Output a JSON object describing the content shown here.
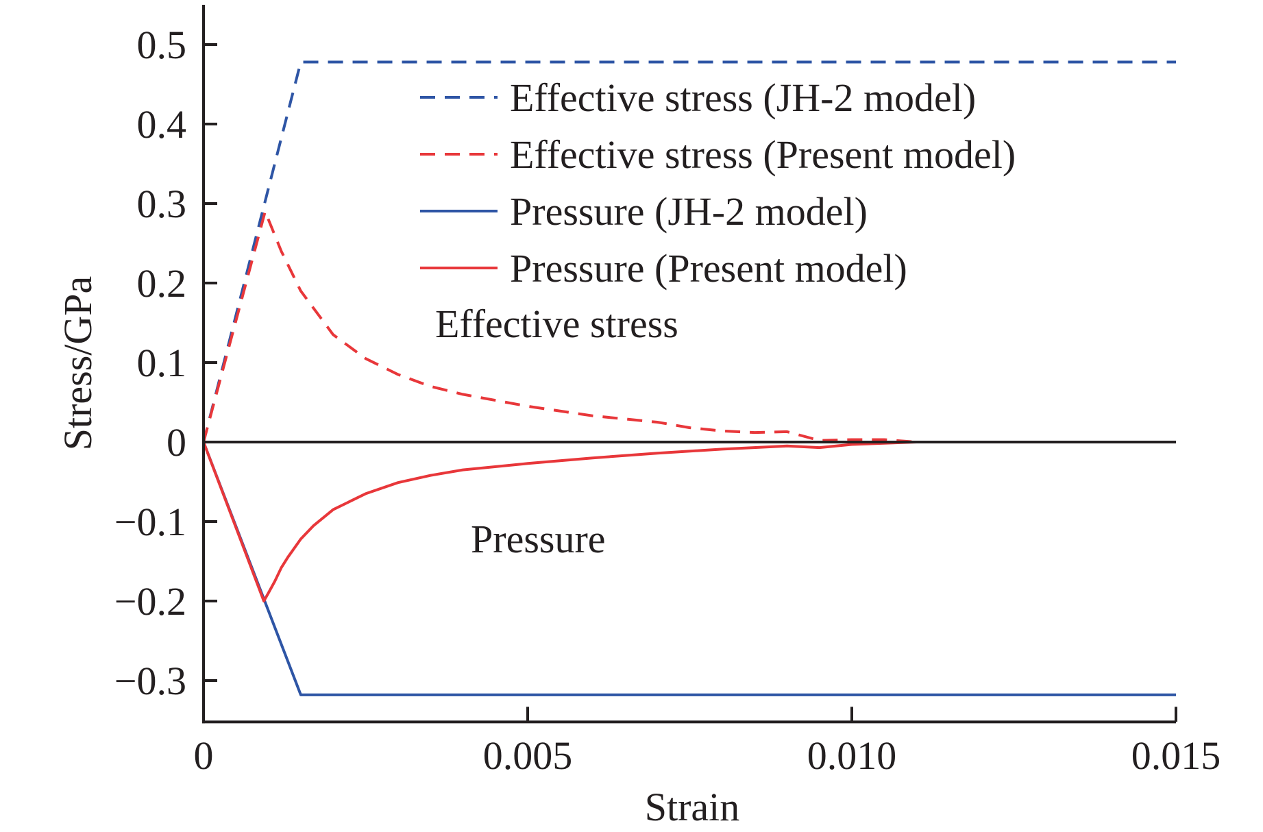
{
  "chart_data": {
    "type": "line",
    "title": "",
    "xlabel": "Strain",
    "ylabel": "Stress/GPa",
    "xlim": [
      0,
      0.015
    ],
    "ylim": [
      -0.352,
      0.55
    ],
    "xticks": [
      0,
      0.005,
      0.01,
      0.015
    ],
    "xtick_labels": [
      "0",
      "0.005",
      "0.010",
      "0.015"
    ],
    "yticks": [
      0.5,
      0.4,
      0.3,
      0.2,
      0.1,
      0,
      -0.1,
      -0.2,
      -0.3
    ],
    "ytick_labels": [
      "0.5",
      "0.4",
      "0.3",
      "0.2",
      "0.1",
      "0",
      "−0.1",
      "−0.2",
      "−0.3"
    ],
    "grid": false,
    "legend_position": "top-right",
    "zero_line": true,
    "annotations": [
      {
        "text": "Effective stress",
        "x": 0.0036,
        "y": 0.14
      },
      {
        "text": "Pressure",
        "x": 0.0041,
        "y": -0.13
      }
    ],
    "series": [
      {
        "name": "Effective stress (JH-2 model)",
        "color": "#2e55a5",
        "dash": true,
        "x": [
          0,
          0.0015,
          0.015
        ],
        "y": [
          0,
          0.478,
          0.478
        ]
      },
      {
        "name": "Effective stress (Present model)",
        "color": "#e8373a",
        "dash": true,
        "x": [
          0,
          0.00095,
          0.0012,
          0.0015,
          0.002,
          0.0025,
          0.003,
          0.0035,
          0.004,
          0.005,
          0.006,
          0.007,
          0.0075,
          0.008,
          0.0085,
          0.009,
          0.0095,
          0.01,
          0.0105,
          0.011
        ],
        "y": [
          0,
          0.29,
          0.24,
          0.19,
          0.135,
          0.105,
          0.085,
          0.07,
          0.06,
          0.045,
          0.033,
          0.025,
          0.018,
          0.014,
          0.012,
          0.013,
          0.002,
          0.003,
          0.003,
          0
        ]
      },
      {
        "name": "Pressure (JH-2 model)",
        "color": "#2e55a5",
        "dash": false,
        "x": [
          0,
          0.0015,
          0.015
        ],
        "y": [
          0,
          -0.318,
          -0.318
        ]
      },
      {
        "name": "Pressure (Present model)",
        "color": "#e8373a",
        "dash": false,
        "x": [
          0,
          0.00093,
          0.001,
          0.0011,
          0.0012,
          0.0013,
          0.0015,
          0.0017,
          0.002,
          0.0025,
          0.003,
          0.0035,
          0.004,
          0.005,
          0.006,
          0.007,
          0.008,
          0.009,
          0.0095,
          0.01,
          0.011
        ],
        "y": [
          0,
          -0.2,
          -0.19,
          -0.175,
          -0.158,
          -0.145,
          -0.122,
          -0.105,
          -0.085,
          -0.065,
          -0.051,
          -0.042,
          -0.035,
          -0.027,
          -0.02,
          -0.014,
          -0.009,
          -0.005,
          -0.007,
          -0.003,
          0
        ]
      }
    ]
  }
}
